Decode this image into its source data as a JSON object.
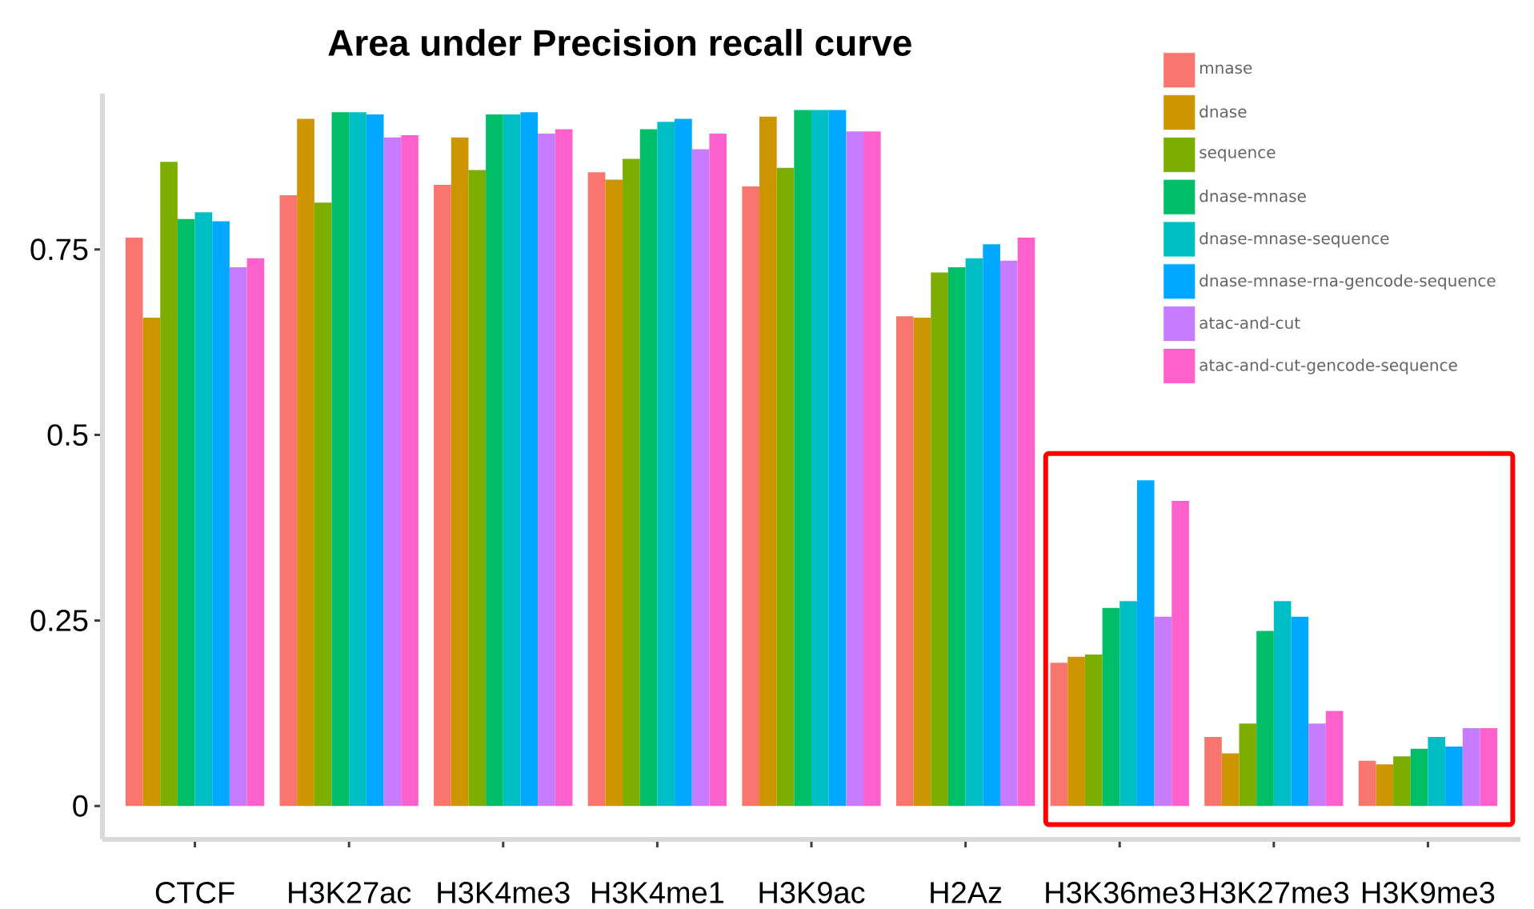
{
  "chart_data": {
    "type": "bar",
    "title": "Area under Precision recall curve",
    "categories": [
      "CTCF",
      "H3K27ac",
      "H3K4me3",
      "H3K4me1",
      "H3K9ac",
      "H2Az",
      "H3K36me3",
      "H3K27me3",
      "H3K9me3"
    ],
    "series": [
      {
        "name": "mnase",
        "color": "#F8766D",
        "values": [
          0.766,
          0.823,
          0.837,
          0.854,
          0.835,
          0.66,
          0.193,
          0.093,
          0.061
        ]
      },
      {
        "name": "dnase",
        "color": "#CD9600",
        "values": [
          0.658,
          0.926,
          0.901,
          0.844,
          0.929,
          0.658,
          0.201,
          0.071,
          0.056
        ]
      },
      {
        "name": "sequence",
        "color": "#7CAE00",
        "values": [
          0.868,
          0.813,
          0.857,
          0.872,
          0.86,
          0.719,
          0.204,
          0.111,
          0.067
        ]
      },
      {
        "name": "dnase-mnase",
        "color": "#00BE67",
        "values": [
          0.791,
          0.935,
          0.932,
          0.912,
          0.938,
          0.726,
          0.267,
          0.236,
          0.077
        ]
      },
      {
        "name": "dnase-mnase-sequence",
        "color": "#00BFC4",
        "values": [
          0.8,
          0.935,
          0.932,
          0.922,
          0.938,
          0.738,
          0.276,
          0.276,
          0.093
        ]
      },
      {
        "name": "dnase-mnase-rna-gencode-sequence",
        "color": "#00A9FF",
        "values": [
          0.788,
          0.932,
          0.935,
          0.926,
          0.938,
          0.757,
          0.439,
          0.255,
          0.08
        ]
      },
      {
        "name": "atac-and-cut",
        "color": "#C77CFF",
        "values": [
          0.726,
          0.901,
          0.906,
          0.885,
          0.909,
          0.735,
          0.255,
          0.111,
          0.105
        ]
      },
      {
        "name": "atac-and-cut-gencode-sequence",
        "color": "#FF61CC",
        "values": [
          0.738,
          0.904,
          0.912,
          0.906,
          0.909,
          0.766,
          0.411,
          0.128,
          0.105
        ]
      }
    ],
    "ylim": [
      -0.045,
      0.96
    ],
    "yticks": [
      0,
      0.25,
      0.5,
      0.75
    ],
    "legend": "top right"
  }
}
